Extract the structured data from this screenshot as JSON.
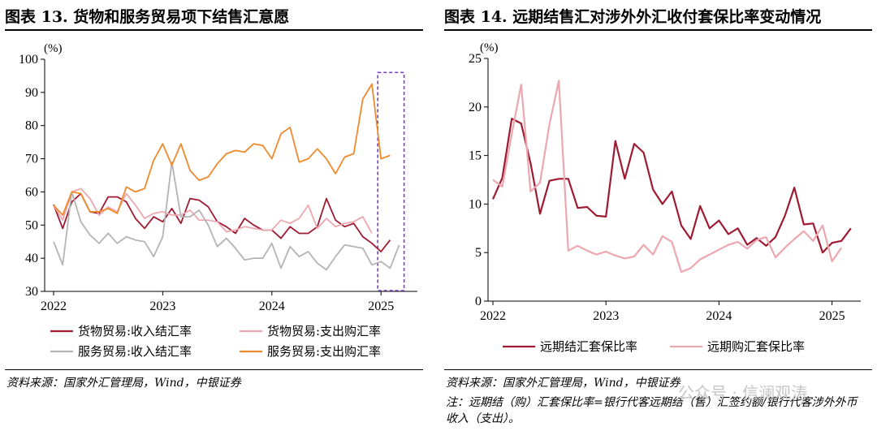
{
  "left": {
    "title": "图表 13. 货物和服务贸易项下结售汇意愿",
    "source": "资料来源：国家外汇管理局，Wind，中银证券",
    "chart_data": {
      "type": "line",
      "unit_label": "(%)",
      "ylim": [
        30,
        100
      ],
      "yticks": [
        30,
        40,
        50,
        60,
        70,
        80,
        90,
        100
      ],
      "x_tick_labels": [
        "2022",
        "2023",
        "2024",
        "2025"
      ],
      "x_start": "2022-01",
      "legend": "bottom",
      "highlight_box": "2025-01 to 2025-03, dashed",
      "series": [
        {
          "name": "货物贸易:收入结汇率",
          "color": "#9e1b32",
          "values": [
            56.2,
            49,
            57,
            59.5,
            54,
            53.5,
            58.5,
            58.5,
            57,
            52,
            49,
            52.5,
            51,
            55,
            50.5,
            58,
            57.5,
            55.5,
            51,
            49.5,
            47.5,
            52,
            50,
            48.5,
            48.5,
            46,
            49.5,
            47.5,
            47.5,
            49.5,
            58,
            51.5,
            49.5,
            50.5,
            46.5,
            44.5,
            42,
            45.5
          ]
        },
        {
          "name": "货物贸易:支出购汇率",
          "color": "#eba8b0",
          "values": [
            56,
            51.5,
            60,
            61,
            58,
            53,
            55.5,
            54,
            59.5,
            56,
            52,
            53.5,
            54,
            53,
            53,
            54.5,
            51.5,
            51.5,
            51,
            48,
            48.5,
            49.5,
            49,
            48.5,
            48.5,
            51.5,
            50.5,
            52,
            56,
            49,
            52,
            49.5,
            50.5,
            51,
            52.5,
            47.5
          ]
        },
        {
          "name": "服务贸易:收入结汇率",
          "color": "#b4b4b4",
          "values": [
            45,
            38,
            60,
            51,
            47,
            44.5,
            47.5,
            44.5,
            46.5,
            45.5,
            45,
            40.5,
            46.5,
            69,
            52.5,
            52.5,
            54.5,
            50,
            43.5,
            46,
            43,
            39.5,
            40,
            40,
            44.5,
            37,
            43.5,
            40.5,
            42,
            38.5,
            36.5,
            40.5,
            44,
            43.5,
            43,
            38,
            39,
            37,
            44
          ]
        },
        {
          "name": "服务贸易:支出购汇率",
          "color": "#ef8a2c",
          "values": [
            56,
            53,
            60,
            59.5,
            54,
            54,
            55,
            53.5,
            61.5,
            60,
            61,
            69.5,
            74.5,
            68,
            74.5,
            66.5,
            63.5,
            64.5,
            68.5,
            71.5,
            72.5,
            72,
            74.5,
            74,
            70,
            77.5,
            79.5,
            69,
            70,
            73,
            70,
            65.5,
            70.5,
            71.5,
            88,
            92.5,
            70,
            71
          ]
        }
      ]
    }
  },
  "right": {
    "title": "图表 14. 远期结售汇对涉外外汇收付套保比率变动情况",
    "source": "资料来源：国家外汇管理局，Wind，中银证券",
    "note": "注：远期结（购）汇套保比率=银行代客远期结（售）汇签约额/银行代客涉外外币收入（支出）。",
    "watermark": "公众号 · 信澜观涛",
    "chart_data": {
      "type": "line",
      "unit_label": "(%)",
      "ylim": [
        0,
        25
      ],
      "yticks": [
        0,
        5,
        10,
        15,
        20,
        25
      ],
      "x_tick_labels": [
        "2022",
        "2023",
        "2024",
        "2025"
      ],
      "x_start": "2022-01",
      "legend": "bottom",
      "series": [
        {
          "name": "远期结汇套保比率",
          "color": "#9e1b32",
          "values": [
            10.5,
            12.7,
            18.8,
            18.3,
            14.2,
            9,
            12.4,
            12.6,
            12.6,
            9.6,
            9.7,
            8.8,
            8.7,
            16.5,
            12.6,
            16.2,
            15.3,
            11.5,
            10,
            11.3,
            7.8,
            6.4,
            9.8,
            7.5,
            8.3,
            6.9,
            7.5,
            5.8,
            6.5,
            5.7,
            6.6,
            8.8,
            11.7,
            7.9,
            8,
            5,
            6,
            6.2,
            7.5
          ]
        },
        {
          "name": "远期购汇套保比率",
          "color": "#eba8b0",
          "values": [
            12.5,
            11.8,
            17.2,
            22.3,
            11.3,
            12.2,
            18.2,
            22.7,
            5.2,
            5.7,
            5.2,
            4.8,
            5.1,
            4.7,
            4.4,
            4.6,
            5.8,
            4.8,
            6.7,
            6.1,
            3,
            3.4,
            4.3,
            4.8,
            5.3,
            5.8,
            6.1,
            5.4,
            6.3,
            6.6,
            4.5,
            5.5,
            6.4,
            7.2,
            6.2,
            7.8,
            4.1,
            5.5
          ]
        }
      ]
    }
  }
}
